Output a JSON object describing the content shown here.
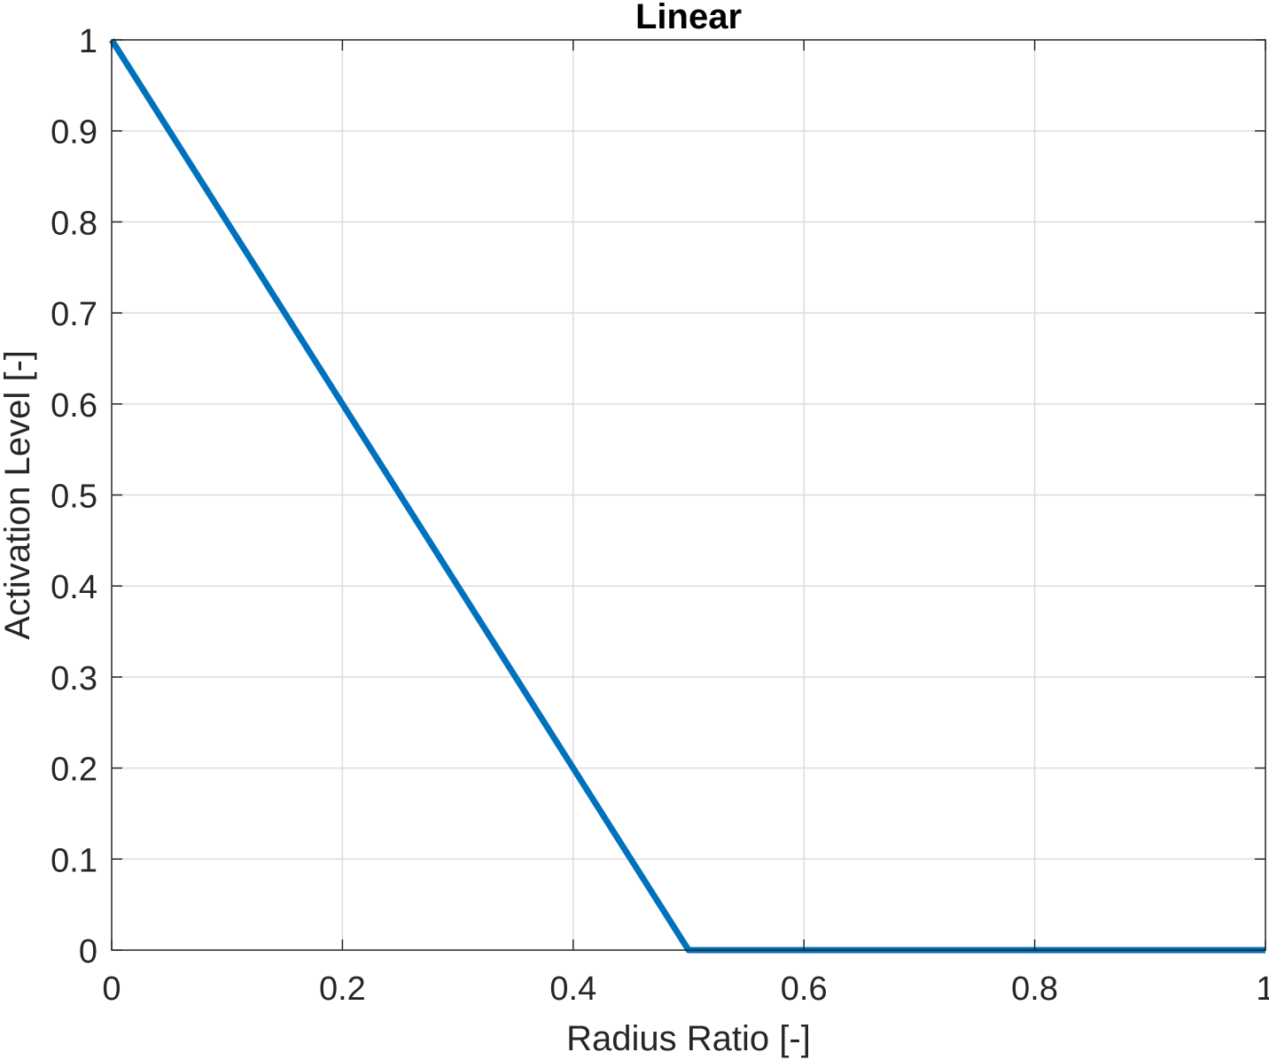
{
  "chart_data": {
    "type": "line",
    "title": "Linear",
    "xlabel": "Radius Ratio [-]",
    "ylabel": "Activation Level [-]",
    "xlim": [
      0,
      1
    ],
    "ylim": [
      0,
      1
    ],
    "xticks": [
      0,
      0.2,
      0.4,
      0.6,
      0.8,
      1
    ],
    "xtick_labels": [
      "0",
      "0.2",
      "0.4",
      "0.6",
      "0.8",
      "1"
    ],
    "yticks": [
      0,
      0.1,
      0.2,
      0.3,
      0.4,
      0.5,
      0.6,
      0.7,
      0.8,
      0.9,
      1
    ],
    "ytick_labels": [
      "0",
      "0.1",
      "0.2",
      "0.3",
      "0.4",
      "0.5",
      "0.6",
      "0.7",
      "0.8",
      "0.9",
      "1"
    ],
    "grid": true,
    "series": [
      {
        "x": [
          0,
          0.5,
          1
        ],
        "y": [
          1,
          0,
          0
        ],
        "color": "#0072BD"
      }
    ]
  }
}
